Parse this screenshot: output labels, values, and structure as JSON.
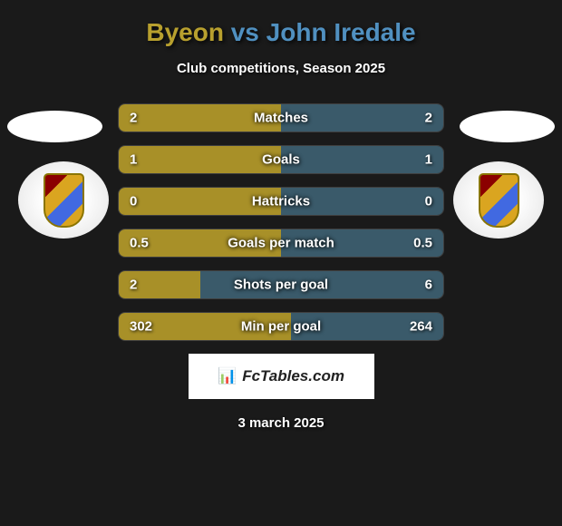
{
  "title": {
    "player1": "Byeon",
    "vs": "vs",
    "player2": "John Iredale"
  },
  "subtitle": "Club competitions, Season 2025",
  "colors": {
    "player1": "#b8a02e",
    "player2": "#5090c0",
    "bar_left": "#a89028",
    "bar_right": "#3a5a6a",
    "background": "#1a1a1a"
  },
  "stats": [
    {
      "label": "Matches",
      "left_value": "2",
      "right_value": "2",
      "left_width": 50,
      "right_width": 50
    },
    {
      "label": "Goals",
      "left_value": "1",
      "right_value": "1",
      "left_width": 50,
      "right_width": 50
    },
    {
      "label": "Hattricks",
      "left_value": "0",
      "right_value": "0",
      "left_width": 50,
      "right_width": 50
    },
    {
      "label": "Goals per match",
      "left_value": "0.5",
      "right_value": "0.5",
      "left_width": 50,
      "right_width": 50
    },
    {
      "label": "Shots per goal",
      "left_value": "2",
      "right_value": "6",
      "left_width": 25,
      "right_width": 75
    },
    {
      "label": "Min per goal",
      "left_value": "302",
      "right_value": "264",
      "left_width": 53,
      "right_width": 47
    }
  ],
  "watermark": {
    "icon": "📊",
    "text": "FcTables.com"
  },
  "date": "3 march 2025"
}
